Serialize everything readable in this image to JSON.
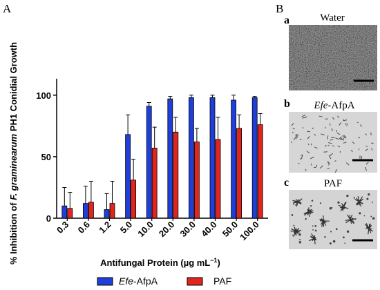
{
  "panels": {
    "a_letter": "A",
    "b_letter": "B"
  },
  "chart_data": {
    "type": "bar",
    "categories": [
      "0.3",
      "0.6",
      "1.2",
      "5.0",
      "10.0",
      "20.0",
      "30.0",
      "40.0",
      "50.0",
      "100.0"
    ],
    "series": [
      {
        "name_em": "Efe",
        "name_rest": "-AfpA",
        "color": "#1f3fd8",
        "values": [
          10,
          12,
          7,
          68,
          91,
          97,
          98,
          98,
          96,
          98
        ],
        "errors": [
          15,
          14,
          13,
          16,
          3,
          2,
          2,
          2,
          4,
          1
        ]
      },
      {
        "name": "PAF",
        "color": "#e0251f",
        "values": [
          8,
          13,
          12,
          31,
          57,
          70,
          62,
          64,
          73,
          76
        ],
        "errors": [
          13,
          17,
          18,
          17,
          17,
          12,
          11,
          18,
          11,
          9
        ]
      }
    ],
    "ylabel_prefix": "% Inhibition of ",
    "ylabel_em": "F. graminearum",
    "ylabel_suffix": " PH1 Conidial Growth",
    "xlabel_main": "Antifungal Protein (µg mL",
    "xlabel_sup": "−1",
    "xlabel_close": ")",
    "yticks": [
      "0",
      "50",
      "100"
    ],
    "ylim": [
      0,
      110
    ]
  },
  "images": [
    {
      "letter": "a",
      "caption": "Water"
    },
    {
      "letter": "b",
      "caption_em": "Efe",
      "caption_rest": "-AfpA"
    },
    {
      "letter": "c",
      "caption": "PAF"
    }
  ]
}
